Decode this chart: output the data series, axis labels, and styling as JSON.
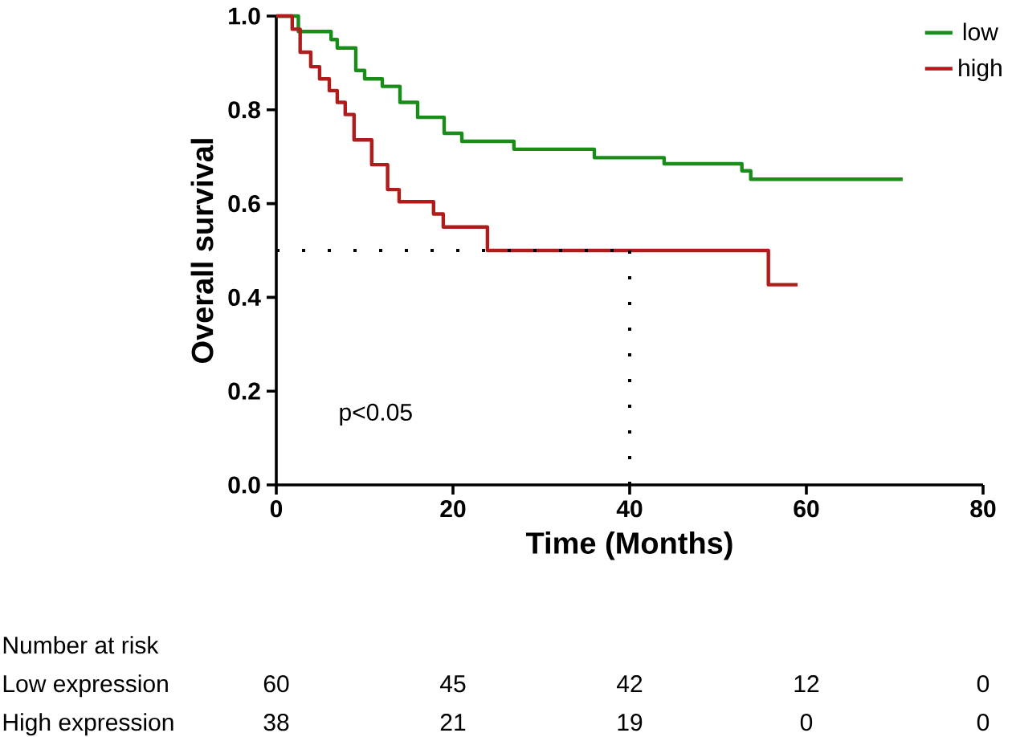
{
  "chart_data": {
    "type": "step",
    "xlabel": "Time (Months)",
    "ylabel": "Overall survival",
    "xlim": [
      0,
      80
    ],
    "ylim": [
      0,
      1
    ],
    "xticks": [
      0,
      20,
      40,
      60,
      80
    ],
    "yticks": [
      {
        "value": 0,
        "label": "0.0"
      },
      {
        "value": 0.2,
        "label": "0.2"
      },
      {
        "value": 0.4,
        "label": "0.4"
      },
      {
        "value": 0.6,
        "label": "0.6"
      },
      {
        "value": 0.8,
        "label": "0.8"
      },
      {
        "value": 1,
        "label": "1.0"
      }
    ],
    "series": [
      {
        "name": "low",
        "color": "#1a8c1a",
        "x": [
          0,
          2.5,
          6.2,
          6.9,
          9,
          10,
          12,
          14,
          16,
          19,
          21,
          26.9,
          36,
          43.9,
          52.7,
          53.7,
          70.9
        ],
        "values": [
          1,
          0.967,
          0.95,
          0.932,
          0.884,
          0.866,
          0.85,
          0.816,
          0.784,
          0.75,
          0.733,
          0.716,
          0.698,
          0.685,
          0.67,
          0.652,
          0.652
        ]
      },
      {
        "name": "high",
        "color": "#b01c1c",
        "x": [
          0,
          1.8,
          2.7,
          3.9,
          4.9,
          6,
          6.9,
          7.8,
          8.8,
          10.8,
          12.6,
          13.9,
          17.8,
          18.9,
          23.9,
          55.7,
          59
        ],
        "values": [
          1,
          0.972,
          0.923,
          0.892,
          0.866,
          0.841,
          0.816,
          0.79,
          0.736,
          0.683,
          0.63,
          0.604,
          0.578,
          0.55,
          0.5,
          0.427,
          0.427
        ]
      }
    ],
    "ref_lines": [
      {
        "axis": "y",
        "value": 0.5,
        "color": "#000000",
        "line_style": "dotted"
      },
      {
        "axis": "x",
        "value": 40,
        "color": "#000000",
        "line_style": "dotted"
      }
    ],
    "annotations": [
      "p<0.05",
      "Number at risk",
      "Low expression",
      "60",
      "45",
      "42",
      "12",
      "0",
      "High expression",
      "38",
      "21",
      "19",
      "0",
      "0"
    ],
    "legend": "top right",
    "grid": false,
    "line_style": "solid"
  }
}
